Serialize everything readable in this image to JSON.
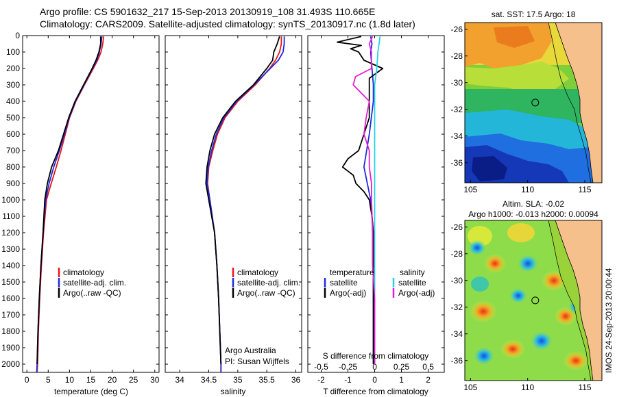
{
  "title": {
    "line1": "Argo profile: CS 5901632_217 15-Sep-2013 20130919_108 31.493S 110.665E",
    "line2": "Climatology: CARS2009. Satellite-adjusted climatology: synTS_20130917.nc (1.8d later)"
  },
  "colors": {
    "climatology": "#e8141a",
    "satellite": "#1f28e0",
    "argo": "#000000",
    "satellite_s": "#22d3e6",
    "argo_s": "#e81ad0",
    "land": "#f6c08c"
  },
  "chart_data": [
    {
      "type": "line",
      "name": "temperature-profile",
      "xlabel": "temperature (deg C)",
      "xlim": [
        -1,
        31
      ],
      "ylim": [
        2050,
        0
      ],
      "x_ticks": [
        "0",
        "5",
        "10",
        "15",
        "20",
        "25",
        "30"
      ],
      "y_ticks": [
        "0",
        "100",
        "200",
        "300",
        "400",
        "500",
        "600",
        "700",
        "800",
        "900",
        "1000",
        "1100",
        "1200",
        "1300",
        "1400",
        "1500",
        "1600",
        "1700",
        "1800",
        "1900",
        "2000"
      ],
      "legend": [
        "climatology",
        "satellite-adj. clim.",
        "Argo(..raw -QC)"
      ],
      "series": [
        {
          "name": "climatology",
          "color": "#e8141a",
          "depth": [
            5,
            50,
            100,
            150,
            200,
            300,
            400,
            500,
            600,
            700,
            800,
            900,
            1000,
            1200,
            1400,
            1600,
            1800,
            2000,
            2050
          ],
          "values": [
            18.0,
            17.8,
            17.4,
            16.6,
            15.6,
            13.5,
            11.5,
            10.0,
            9.0,
            8.0,
            6.9,
            5.7,
            4.6,
            3.9,
            3.4,
            3.0,
            2.7,
            2.5,
            2.4
          ]
        },
        {
          "name": "satellite-adj. clim.",
          "color": "#1f28e0",
          "depth": [
            5,
            50,
            100,
            150,
            200,
            300,
            400,
            500,
            600,
            700,
            800,
            900,
            1000,
            1200,
            1400,
            1600,
            1800,
            2000,
            2050
          ],
          "values": [
            17.6,
            17.4,
            17.0,
            16.4,
            15.4,
            13.4,
            11.4,
            9.9,
            8.8,
            7.6,
            6.3,
            5.2,
            4.4,
            3.8,
            3.3,
            2.9,
            2.6,
            2.4,
            2.3
          ]
        },
        {
          "name": "Argo(..raw -QC)",
          "color": "#000000",
          "depth": [
            5,
            50,
            100,
            150,
            200,
            300,
            400,
            500,
            600,
            700,
            800,
            900,
            1000,
            1200,
            1400,
            1600,
            1800,
            2000
          ],
          "values": [
            17.3,
            17.3,
            16.9,
            16.2,
            15.3,
            13.3,
            11.3,
            9.8,
            8.6,
            7.4,
            5.8,
            4.8,
            4.2,
            3.8,
            3.3,
            2.9,
            2.6,
            2.4
          ]
        }
      ]
    },
    {
      "type": "line",
      "name": "salinity-profile",
      "xlabel": "salinity",
      "xlim": [
        33.75,
        36.1
      ],
      "ylim": [
        2050,
        0
      ],
      "x_ticks": [
        "34",
        "34.5",
        "35",
        "35.5",
        "36"
      ],
      "legend": [
        "climatology",
        "satellite-adj. clim.",
        "Argo(..raw -QC)"
      ],
      "annotation": [
        "Argo Australia",
        "PI: Susan Wijffels"
      ],
      "series": [
        {
          "name": "climatology",
          "color": "#e8141a",
          "depth": [
            5,
            50,
            100,
            150,
            200,
            300,
            400,
            500,
            600,
            700,
            800,
            900,
            1000,
            1200,
            1400,
            1600,
            1800,
            2000,
            2050
          ],
          "values": [
            35.75,
            35.75,
            35.72,
            35.65,
            35.55,
            35.3,
            35.0,
            34.78,
            34.65,
            34.57,
            34.5,
            34.48,
            34.52,
            34.6,
            34.64,
            34.67,
            34.69,
            34.71,
            34.71
          ]
        },
        {
          "name": "satellite-adj. clim.",
          "color": "#1f28e0",
          "depth": [
            5,
            50,
            100,
            150,
            200,
            300,
            400,
            500,
            600,
            700,
            800,
            900,
            1000,
            1200,
            1400,
            1600,
            1800,
            2000,
            2050
          ],
          "values": [
            35.8,
            35.8,
            35.78,
            35.7,
            35.56,
            35.28,
            34.98,
            34.76,
            34.63,
            34.55,
            34.49,
            34.47,
            34.52,
            34.6,
            34.64,
            34.67,
            34.69,
            34.71,
            34.71
          ]
        },
        {
          "name": "Argo(..raw -QC)",
          "color": "#000000",
          "depth": [
            5,
            50,
            100,
            150,
            200,
            300,
            400,
            500,
            600,
            700,
            800,
            900,
            1000,
            1200,
            1400,
            1600,
            1800,
            2000
          ],
          "values": [
            35.72,
            35.68,
            35.62,
            35.6,
            35.5,
            35.27,
            34.96,
            34.74,
            34.6,
            34.52,
            34.47,
            34.45,
            34.5,
            34.6,
            34.64,
            34.67,
            34.69,
            34.71
          ]
        }
      ]
    },
    {
      "type": "line",
      "name": "difference-profile",
      "xlabel": "T difference from climatology",
      "xlabel2": "S difference from climatology",
      "xlim": [
        -2.5,
        2.6
      ],
      "ylim": [
        2050,
        0
      ],
      "x_ticks": [
        "-2",
        "-1",
        "0",
        "1",
        "2"
      ],
      "x_ticks_s": [
        "-0.5",
        "-0.25",
        "0",
        "0.25",
        "0.5"
      ],
      "legend": {
        "temperature_header": "temperature",
        "salinity_header": "salinity",
        "items": [
          "satellite",
          "Argo(-adj)",
          "satellite",
          "Argo(-adj)"
        ]
      },
      "series": [
        {
          "name": "T satellite",
          "color": "#1f28e0",
          "depth": [
            5,
            50,
            100,
            200,
            300,
            400,
            600,
            800,
            1000,
            1200,
            1400,
            1600,
            1800,
            2000
          ],
          "values": [
            -0.15,
            -0.1,
            -0.15,
            -0.1,
            -0.05,
            -0.05,
            -0.2,
            -0.4,
            -0.15,
            -0.05,
            -0.05,
            -0.05,
            -0.05,
            -0.05
          ]
        },
        {
          "name": "T Argo(-adj)",
          "color": "#000000",
          "depth": [
            5,
            40,
            60,
            80,
            100,
            150,
            200,
            260,
            300,
            400,
            500,
            600,
            700,
            750,
            800,
            850,
            900,
            950,
            1000,
            1100,
            1200,
            1400,
            1600,
            1800,
            2000
          ],
          "values": [
            -0.5,
            -1.4,
            -0.5,
            -0.9,
            -0.6,
            -0.4,
            0.3,
            -0.2,
            -0.2,
            -0.2,
            -0.2,
            -0.4,
            -0.6,
            -1.0,
            -1.2,
            -0.8,
            -0.7,
            -0.4,
            -0.2,
            -0.1,
            -0.05,
            -0.05,
            -0.05,
            -0.05,
            -0.05
          ]
        },
        {
          "name": "S satellite",
          "color": "#22d3e6",
          "depth": [
            5,
            100,
            200,
            300,
            400,
            600,
            800,
            1000,
            1200,
            1400,
            1600,
            1800,
            2000
          ],
          "values": [
            0.05,
            0.03,
            0.02,
            0.0,
            0.0,
            0.0,
            0.0,
            0.0,
            0.0,
            0.0,
            0.0,
            0.0,
            0.0
          ]
        },
        {
          "name": "S Argo(-adj)",
          "color": "#e81ad0",
          "depth": [
            5,
            50,
            100,
            150,
            200,
            250,
            300,
            400,
            500,
            600,
            700,
            800,
            900,
            1000,
            1200,
            1400,
            1600,
            1800,
            2000
          ],
          "values": [
            -0.02,
            -0.05,
            -0.03,
            -0.03,
            -0.03,
            -0.18,
            -0.2,
            -0.05,
            -0.08,
            -0.1,
            -0.05,
            -0.05,
            -0.03,
            -0.03,
            -0.02,
            -0.02,
            0.0,
            0.0,
            0.0
          ]
        }
      ]
    },
    {
      "type": "heatmap",
      "name": "sst-map",
      "title": "sat. SST: 17.5 Argo: 18",
      "x_ticks": [
        "105",
        "110",
        "115"
      ],
      "y_ticks": [
        "-26",
        "-28",
        "-30",
        "-32",
        "-34",
        "-36"
      ],
      "xlim": [
        104.5,
        116.5
      ],
      "ylim": [
        -37.5,
        -25.5
      ],
      "argo_position": {
        "lon": 110.665,
        "lat": -31.493
      }
    },
    {
      "type": "heatmap",
      "name": "sla-map",
      "title": "Altim. SLA: -0.02",
      "subtitle": "Argo h1000: -0.013 h2000: 0.00094",
      "x_ticks": [
        "105",
        "110",
        "115"
      ],
      "y_ticks": [
        "-26",
        "-28",
        "-30",
        "-32",
        "-34",
        "-36"
      ],
      "xlim": [
        104.5,
        116.5
      ],
      "ylim": [
        -37.5,
        -25.5
      ],
      "argo_position": {
        "lon": 110.665,
        "lat": -31.493
      },
      "stamp": "IMOS 24-Sep-2013 20:00:44"
    }
  ]
}
